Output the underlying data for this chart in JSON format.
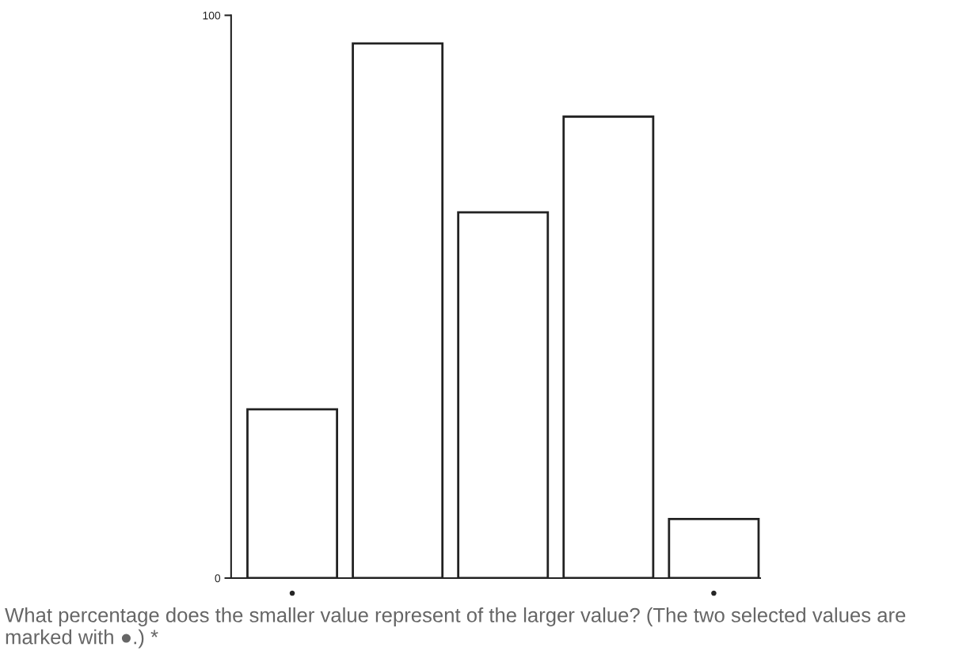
{
  "chart_data": {
    "type": "bar",
    "categories": [
      null,
      null,
      null,
      null,
      null
    ],
    "values": [
      30,
      95,
      65,
      82,
      10.5
    ],
    "value_labels": [
      "●",
      null,
      null,
      null,
      "●"
    ],
    "color": "#ffffff",
    "ylim": [
      0,
      100
    ],
    "yticks": [
      0,
      100
    ],
    "grid": false,
    "legend": false,
    "annotations": [
      "What percentage does the smaller value represent of the larger value? (The two selected values are marked with ●.) *"
    ]
  }
}
